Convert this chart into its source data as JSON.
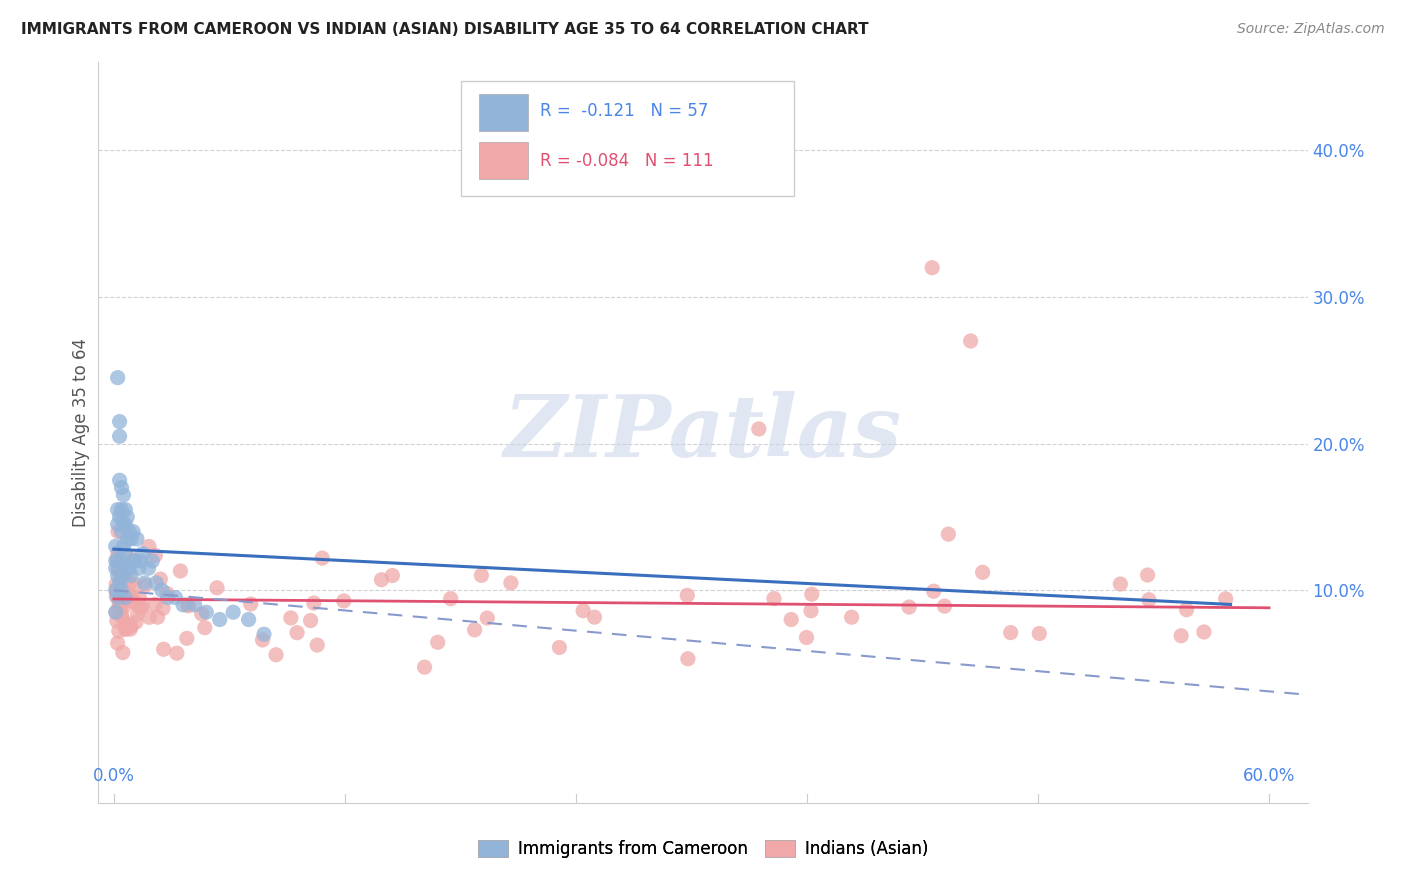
{
  "title": "IMMIGRANTS FROM CAMEROON VS INDIAN (ASIAN) DISABILITY AGE 35 TO 64 CORRELATION CHART",
  "source": "Source: ZipAtlas.com",
  "ylabel": "Disability Age 35 to 64",
  "right_yticklabels": [
    "10.0%",
    "20.0%",
    "30.0%",
    "40.0%"
  ],
  "right_ytick_vals": [
    0.1,
    0.2,
    0.3,
    0.4
  ],
  "legend_blue_r": "R =  -0.121",
  "legend_blue_n": "N = 57",
  "legend_pink_r": "R = -0.084",
  "legend_pink_n": "N = 111",
  "legend_blue_label": "Immigrants from Cameroon",
  "legend_pink_label": "Indians (Asian)",
  "watermark": "ZIPatlas",
  "blue_color": "#92b4d9",
  "pink_color": "#f0a8a8",
  "blue_line_color": "#3a6fbe",
  "pink_line_color": "#e05070",
  "dashed_line_color": "#8899cc",
  "background_color": "#ffffff",
  "grid_color": "#cccccc",
  "title_color": "#222222",
  "source_color": "#888888",
  "axis_label_color": "#555555",
  "tick_color": "#4a86e8",
  "xlim": [
    -0.008,
    0.62
  ],
  "ylim": [
    -0.045,
    0.46
  ]
}
